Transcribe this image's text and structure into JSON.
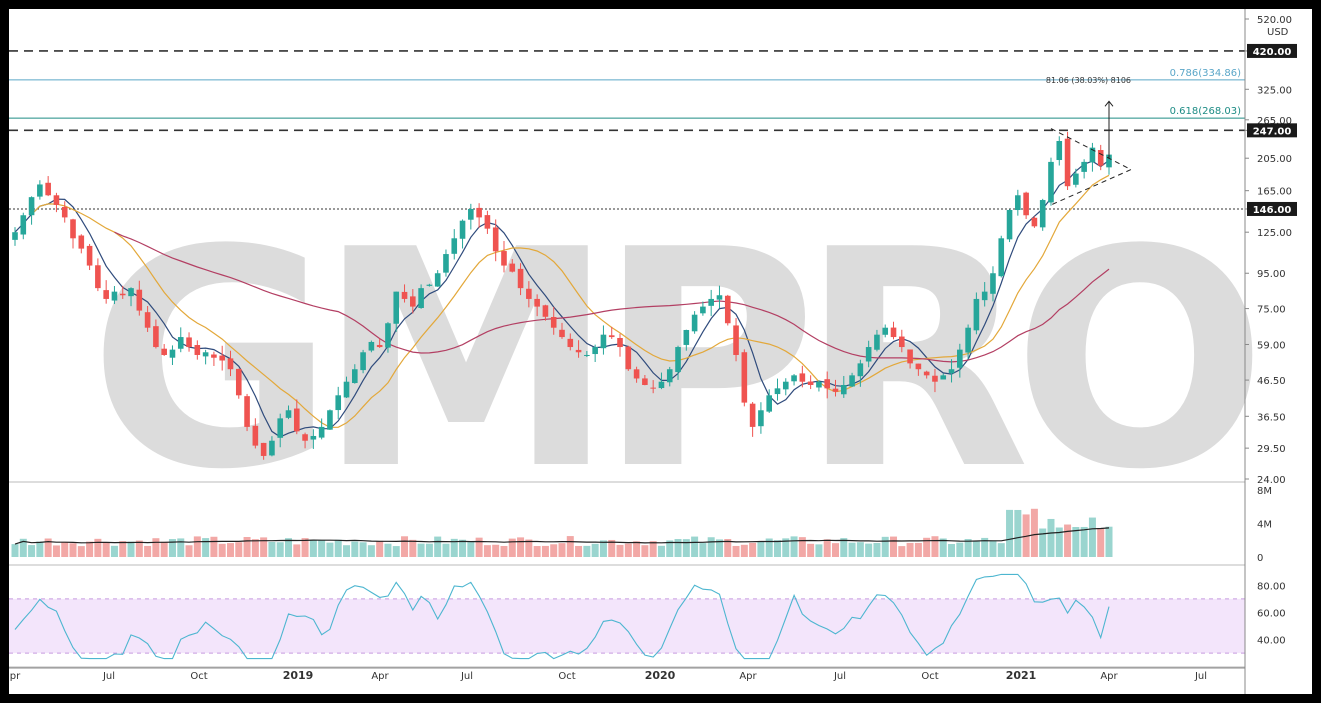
{
  "watermark": "GMPRO",
  "currency": "USD",
  "levels": [
    {
      "value": 420.0,
      "label": "420.00",
      "style": "dashed"
    },
    {
      "value": 247.0,
      "label": "247.00",
      "style": "dashed"
    },
    {
      "value": 146.0,
      "label": "146.00",
      "style": "dotted"
    }
  ],
  "fib_levels": [
    {
      "label": "0.786(334.86)",
      "value": 334.86,
      "color": "#5aa6c8"
    },
    {
      "label": "0.618(268.03)",
      "value": 268.03,
      "color": "#1e8c85"
    }
  ],
  "measure_label": "81.06 (38.03%) 8106",
  "chart_data": {
    "type": "candlestick",
    "price_axis": {
      "scale": "log",
      "ticks": [
        "520.00",
        "420.00",
        "325.00",
        "265.00",
        "247.00",
        "205.00",
        "165.00",
        "146.00",
        "125.00",
        "95.00",
        "75.00",
        "59.00",
        "46.50",
        "36.50",
        "29.50",
        "24.00"
      ],
      "ylim": [
        24,
        520
      ]
    },
    "volume_axis": {
      "ticks": [
        "8M",
        "4M",
        "0"
      ]
    },
    "rsi_axis": {
      "ticks": [
        "80.00",
        "60.00",
        "40.00"
      ],
      "band": [
        30,
        70
      ]
    },
    "x_ticks": [
      "pr",
      "Jul",
      "Oct",
      "2019",
      "Apr",
      "Jul",
      "Oct",
      "2020",
      "Apr",
      "Jul",
      "Oct",
      "2021",
      "Apr",
      "Jul"
    ],
    "close": [
      125,
      140,
      158,
      172,
      160,
      150,
      138,
      120,
      112,
      100,
      86,
      80,
      84,
      82,
      86,
      74,
      66,
      58,
      55,
      57,
      62,
      58,
      55,
      56,
      54,
      53,
      50,
      42,
      34,
      30,
      28,
      31,
      36,
      38,
      33,
      31,
      32,
      34,
      38,
      42,
      46,
      50,
      56,
      60,
      58,
      68,
      84,
      80,
      76,
      86,
      88,
      95,
      108,
      120,
      135,
      146,
      138,
      128,
      110,
      100,
      96,
      86,
      80,
      76,
      71,
      66,
      62,
      58,
      56,
      55,
      58,
      63,
      62,
      58,
      50,
      47,
      45,
      44,
      46,
      50,
      58,
      65,
      72,
      76,
      80,
      82,
      68,
      55,
      40,
      34,
      38,
      42,
      44,
      46,
      48,
      46,
      45,
      46,
      44,
      43,
      45,
      48,
      52,
      58,
      63,
      66,
      62,
      58,
      52,
      50,
      48,
      46,
      48,
      50,
      57,
      66,
      80,
      84,
      95,
      120,
      145,
      160,
      140,
      130,
      155,
      200,
      230,
      170,
      185,
      200,
      220,
      195,
      210
    ],
    "ma_short_color": "#2f4b7c",
    "ma_mid_color": "#e3a83a",
    "ma_long_color": "#b33f63",
    "up_color": "#26a69a",
    "down_color": "#ef5350"
  }
}
